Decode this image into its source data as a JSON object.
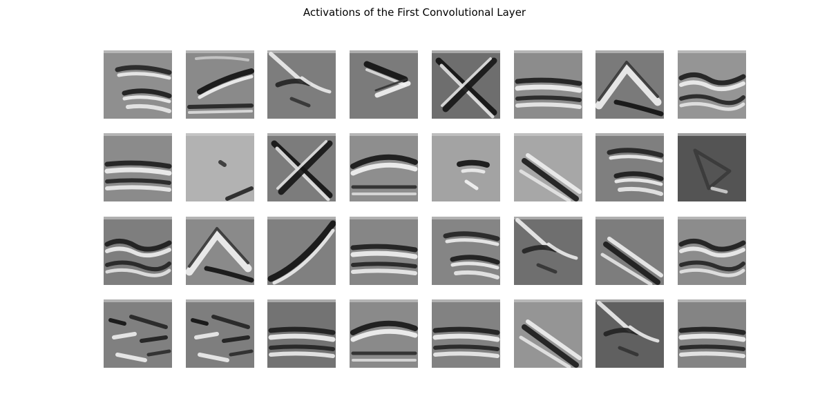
{
  "figure": {
    "title": "Activations of the First Convolutional Layer",
    "colormap": "gray",
    "rows": 4,
    "cols": 8,
    "axes_visible": false
  },
  "panels": [
    {
      "name": "activation-map-1",
      "bg": "#8f8f8f",
      "motif": "stacked-strokes"
    },
    {
      "name": "activation-map-2",
      "bg": "#8a8a8a",
      "motif": "rising-stroke"
    },
    {
      "name": "activation-map-3",
      "bg": "#7d7d7d",
      "motif": "crossed-blob"
    },
    {
      "name": "activation-map-4",
      "bg": "#7b7b7b",
      "motif": "arrow-left"
    },
    {
      "name": "activation-map-5",
      "bg": "#6e6e6e",
      "motif": "x-cross"
    },
    {
      "name": "activation-map-6",
      "bg": "#8c8c8c",
      "motif": "horizontal-bands"
    },
    {
      "name": "activation-map-7",
      "bg": "#7a7a7a",
      "motif": "chevron-up"
    },
    {
      "name": "activation-map-8",
      "bg": "#959595",
      "motif": "wavy-bands"
    },
    {
      "name": "activation-map-9",
      "bg": "#8b8b8b",
      "motif": "horizontal-bands"
    },
    {
      "name": "activation-map-10",
      "bg": "#b2b2b2",
      "motif": "faint-dot"
    },
    {
      "name": "activation-map-11",
      "bg": "#7c7c7c",
      "motif": "x-cross"
    },
    {
      "name": "activation-map-12",
      "bg": "#8e8e8e",
      "motif": "arch-bands"
    },
    {
      "name": "activation-map-13",
      "bg": "#a3a3a3",
      "motif": "center-blob"
    },
    {
      "name": "activation-map-14",
      "bg": "#a7a7a7",
      "motif": "diagonal-down"
    },
    {
      "name": "activation-map-15",
      "bg": "#7f7f7f",
      "motif": "stacked-strokes"
    },
    {
      "name": "activation-map-16",
      "bg": "#545454",
      "motif": "dark-triangle"
    },
    {
      "name": "activation-map-17",
      "bg": "#7e7e7e",
      "motif": "wavy-bands"
    },
    {
      "name": "activation-map-18",
      "bg": "#8a8a8a",
      "motif": "chevron-up"
    },
    {
      "name": "activation-map-19",
      "bg": "#808080",
      "motif": "diagonal-up"
    },
    {
      "name": "activation-map-20",
      "bg": "#868686",
      "motif": "horizontal-bands"
    },
    {
      "name": "activation-map-21",
      "bg": "#858585",
      "motif": "stacked-strokes"
    },
    {
      "name": "activation-map-22",
      "bg": "#6f6f6f",
      "motif": "crossed-blob"
    },
    {
      "name": "activation-map-23",
      "bg": "#7d7d7d",
      "motif": "diagonal-down"
    },
    {
      "name": "activation-map-24",
      "bg": "#8c8c8c",
      "motif": "wavy-bands"
    },
    {
      "name": "activation-map-25",
      "bg": "#808080",
      "motif": "noisy-strokes"
    },
    {
      "name": "activation-map-26",
      "bg": "#7e7e7e",
      "motif": "noisy-strokes"
    },
    {
      "name": "activation-map-27",
      "bg": "#737373",
      "motif": "horizontal-bands"
    },
    {
      "name": "activation-map-28",
      "bg": "#8a8a8a",
      "motif": "arch-bands"
    },
    {
      "name": "activation-map-29",
      "bg": "#828282",
      "motif": "horizontal-bands"
    },
    {
      "name": "activation-map-30",
      "bg": "#959595",
      "motif": "diagonal-down"
    },
    {
      "name": "activation-map-31",
      "bg": "#606060",
      "motif": "crossed-blob"
    },
    {
      "name": "activation-map-32",
      "bg": "#848484",
      "motif": "horizontal-bands"
    }
  ]
}
